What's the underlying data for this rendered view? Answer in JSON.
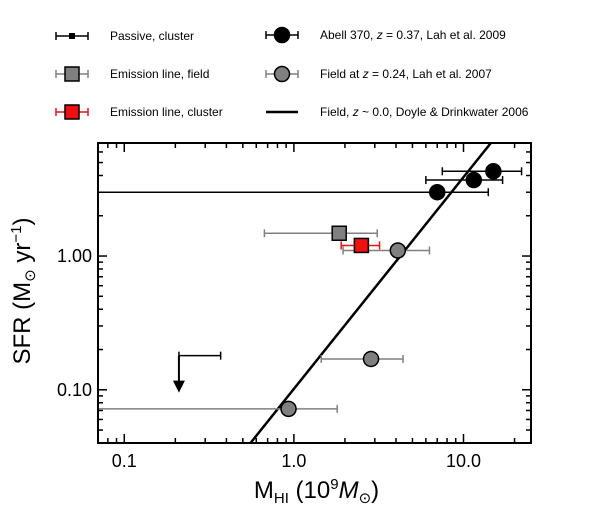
{
  "chart_data": {
    "type": "scatter",
    "xscale": "log",
    "yscale": "log",
    "xlim": [
      0.07,
      25
    ],
    "ylim": [
      0.04,
      7
    ],
    "xlabel": "M_HI (10^9 M_sun)",
    "ylabel": "SFR (M_sun yr^-1)",
    "xticks": [
      {
        "value": 0.1,
        "label": "0.1"
      },
      {
        "value": 1,
        "label": "1.0"
      },
      {
        "value": 10,
        "label": "10.0"
      }
    ],
    "yticks": [
      {
        "value": 0.1,
        "label": "0.10"
      },
      {
        "value": 1,
        "label": "1.00"
      }
    ],
    "legend_placement": "top",
    "legend": [
      {
        "key": "passive",
        "label": "Passive, cluster",
        "marker": "small-square",
        "color": "#000000"
      },
      {
        "key": "abell",
        "label": "Abell 370, z = 0.37, Lah et al. 2009",
        "marker": "circle",
        "color": "#000000"
      },
      {
        "key": "emfield",
        "label": "Emission line, field",
        "marker": "square",
        "color": "#808080"
      },
      {
        "key": "field024",
        "label": "Field at z = 0.24, Lah et al. 2007",
        "marker": "circle",
        "color": "#808080"
      },
      {
        "key": "emcluster",
        "label": "Emission line, cluster",
        "marker": "square",
        "color": "#ee1111"
      },
      {
        "key": "doyle",
        "label": "Field, z ~ 0.0, Doyle & Drinkwater 2006",
        "marker": "line",
        "color": "#000000"
      }
    ],
    "series": [
      {
        "key": "passive",
        "name": "Passive, cluster",
        "color": "#000000",
        "points": [
          {
            "x": 0.21,
            "y": 0.18,
            "xerr_low": 0.21,
            "xerr_high": 0.37,
            "upper_limit": true
          }
        ]
      },
      {
        "key": "abell",
        "name": "Abell 370, z = 0.37, Lah et al. 2009",
        "color": "#000000",
        "points": [
          {
            "x": 7.0,
            "y": 3.0,
            "xerr_low": 0.07,
            "xerr_high": 14.0
          },
          {
            "x": 11.5,
            "y": 3.7,
            "xerr_low": 6.0,
            "xerr_high": 17.0
          },
          {
            "x": 15.0,
            "y": 4.3,
            "xerr_low": 7.5,
            "xerr_high": 22.0
          }
        ]
      },
      {
        "key": "emfield",
        "name": "Emission line, field",
        "color": "#808080",
        "points": [
          {
            "x": 1.85,
            "y": 1.48,
            "xerr_low": 0.67,
            "xerr_high": 3.1
          }
        ]
      },
      {
        "key": "emcluster",
        "name": "Emission line, cluster",
        "color": "#ee1111",
        "points": [
          {
            "x": 2.5,
            "y": 1.2,
            "xerr_low": 1.9,
            "xerr_high": 3.2
          }
        ]
      },
      {
        "key": "field024",
        "name": "Field at z = 0.24, Lah et al. 2007",
        "color": "#808080",
        "points": [
          {
            "x": 4.1,
            "y": 1.1,
            "xerr_low": 1.95,
            "xerr_high": 6.3
          },
          {
            "x": 2.85,
            "y": 0.17,
            "xerr_low": 1.45,
            "xerr_high": 4.4
          },
          {
            "x": 0.93,
            "y": 0.072,
            "xerr_low": 0.07,
            "xerr_high": 1.8
          }
        ]
      },
      {
        "key": "doyle",
        "name": "Field, z ~ 0.0, Doyle & Drinkwater 2006",
        "color": "#000000",
        "line": [
          [
            0.555,
            0.04
          ],
          [
            14.5,
            7.0
          ]
        ]
      }
    ]
  }
}
